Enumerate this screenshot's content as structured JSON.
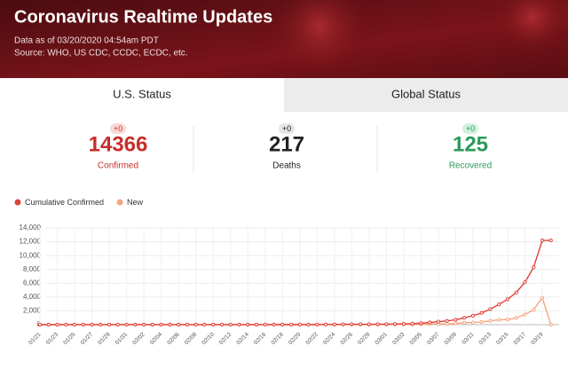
{
  "header": {
    "title": "Coronavirus Realtime Updates",
    "updated": "Data as of 03/20/2020 04:54am PDT",
    "source": "Source: WHO, US CDC, CCDC, ECDC, etc."
  },
  "tabs": [
    {
      "label": "U.S. Status",
      "active": true
    },
    {
      "label": "Global Status",
      "active": false
    }
  ],
  "stats": [
    {
      "change": "+0",
      "value": 14366,
      "label": "Confirmed",
      "color": "#c62f2a",
      "badge": "#fbd9d6"
    },
    {
      "change": "+0",
      "value": 217,
      "label": "Deaths",
      "color": "#222222",
      "badge": "#e6e6e6"
    },
    {
      "change": "+0",
      "value": 125,
      "label": "Recovered",
      "color": "#2a9a5b",
      "badge": "#d3f1df"
    }
  ],
  "chart_data": {
    "type": "line",
    "legend": "top-left",
    "grid": true,
    "categories": [
      "01/21",
      null,
      "01/23",
      null,
      "01/25",
      null,
      "01/27",
      null,
      "01/29",
      null,
      "01/31",
      null,
      "02/02",
      null,
      "02/04",
      null,
      "02/06",
      null,
      "02/08",
      null,
      "02/10",
      null,
      "02/12",
      null,
      "02/14",
      null,
      "02/16",
      null,
      "02/18",
      null,
      "02/20",
      null,
      "02/22",
      null,
      "02/24",
      null,
      "02/26",
      null,
      "02/28",
      null,
      "03/01",
      null,
      "03/03",
      null,
      "03/05",
      null,
      "03/07",
      null,
      "03/09",
      null,
      "03/11",
      null,
      "03/13",
      null,
      "03/15",
      null,
      "03/17",
      null,
      "03/19",
      null
    ],
    "series": [
      {
        "name": "Cumulative Confirmed",
        "color": "#e0413b",
        "values": [
          1,
          1,
          1,
          2,
          2,
          5,
          5,
          5,
          5,
          6,
          7,
          8,
          11,
          11,
          11,
          12,
          12,
          12,
          12,
          12,
          13,
          13,
          14,
          14,
          14,
          14,
          14,
          15,
          15,
          15,
          15,
          15,
          15,
          35,
          35,
          53,
          57,
          60,
          60,
          68,
          75,
          100,
          124,
          158,
          221,
          319,
          435,
          541,
          704,
          994,
          1301,
          1697,
          2247,
          2943,
          3680,
          4663,
          6140,
          8300,
          12200,
          12200
        ]
      },
      {
        "name": "New",
        "color": "#f5a67f",
        "values": [
          1,
          0,
          0,
          1,
          0,
          3,
          0,
          0,
          0,
          1,
          1,
          1,
          3,
          0,
          0,
          1,
          0,
          0,
          0,
          0,
          1,
          0,
          1,
          0,
          0,
          0,
          0,
          1,
          0,
          0,
          0,
          0,
          0,
          20,
          0,
          18,
          4,
          3,
          0,
          8,
          7,
          25,
          24,
          34,
          63,
          98,
          116,
          106,
          163,
          290,
          307,
          396,
          550,
          696,
          737,
          983,
          1477,
          2160,
          3900,
          0
        ]
      }
    ],
    "ylim": [
      0,
      14000
    ],
    "yticks": [
      0,
      {
        "value": 2000,
        "label": "2,000"
      },
      {
        "value": 4000,
        "label": "4,000"
      },
      {
        "value": 6000,
        "label": "6,000"
      },
      {
        "value": 8000,
        "label": "8,000"
      },
      {
        "value": 10000,
        "label": "10,000"
      },
      {
        "value": 12000,
        "label": "12,000"
      },
      {
        "value": 14000,
        "label": "14,000"
      }
    ]
  }
}
